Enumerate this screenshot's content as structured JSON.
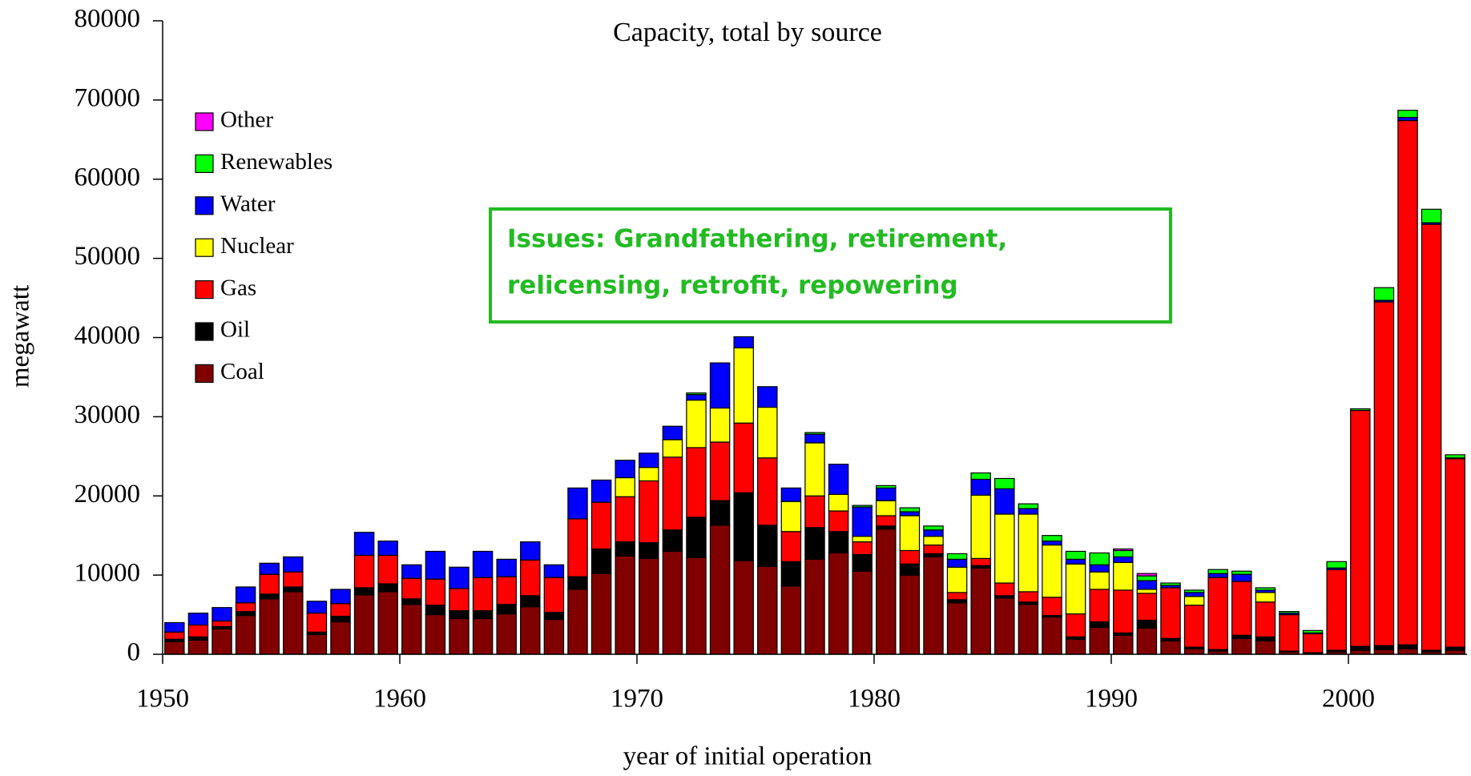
{
  "chart_data": {
    "type": "stacked_bar",
    "title": "Capacity, total by source",
    "x_label": "year of initial operation",
    "y_label": "megawatt",
    "annotation": [
      "Issues: Grandfathering, retirement,",
      "relicensing, retrofit, repowering"
    ],
    "legend": "upper left",
    "x": [
      1950,
      1951,
      1952,
      1953,
      1954,
      1955,
      1956,
      1957,
      1958,
      1959,
      1960,
      1961,
      1962,
      1963,
      1964,
      1965,
      1966,
      1967,
      1968,
      1969,
      1970,
      1971,
      1972,
      1973,
      1974,
      1975,
      1976,
      1977,
      1978,
      1979,
      1980,
      1981,
      1982,
      1983,
      1984,
      1985,
      1986,
      1987,
      1988,
      1989,
      1990,
      1991,
      1992,
      1993,
      1994,
      1995,
      1996,
      1997,
      1998,
      1999,
      2000,
      2001,
      2002,
      2003,
      2004
    ],
    "xlim": [
      1950,
      2005
    ],
    "xticks": [
      1950,
      1960,
      1970,
      1980,
      1990,
      2000
    ],
    "ylim": [
      0,
      80000
    ],
    "yticks": [
      0,
      10000,
      20000,
      30000,
      40000,
      50000,
      60000,
      70000,
      80000
    ],
    "series": [
      {
        "name": "Coal",
        "color": "#800000",
        "values": [
          1600,
          1800,
          3200,
          4900,
          7000,
          7900,
          2500,
          4100,
          7500,
          7900,
          6300,
          5000,
          4500,
          4500,
          5100,
          6000,
          4400,
          8200,
          10200,
          12400,
          12100,
          13000,
          12200,
          16300,
          11800,
          11100,
          8600,
          12000,
          12800,
          10500,
          15800,
          10000,
          12300,
          6500,
          10900,
          7100,
          6300,
          4700,
          1900,
          3400,
          2400,
          3300,
          1700,
          700,
          400,
          2000,
          1700,
          300,
          100,
          300,
          500,
          600,
          700,
          300,
          500
        ]
      },
      {
        "name": "Oil",
        "color": "#000000",
        "values": [
          300,
          400,
          300,
          500,
          600,
          600,
          300,
          700,
          900,
          1000,
          700,
          1200,
          1000,
          1000,
          1200,
          1400,
          900,
          1600,
          3100,
          1800,
          2000,
          2700,
          5100,
          3100,
          8600,
          5200,
          3100,
          4000,
          2700,
          2100,
          400,
          1400,
          400,
          400,
          300,
          300,
          300,
          200,
          300,
          700,
          300,
          1000,
          300,
          200,
          200,
          400,
          500,
          100,
          100,
          200,
          500,
          500,
          500,
          200,
          400
        ]
      },
      {
        "name": "Gas",
        "color": "#ff0000",
        "values": [
          900,
          1500,
          700,
          1100,
          2500,
          1900,
          2400,
          1600,
          4100,
          3600,
          2600,
          3300,
          2800,
          4200,
          3500,
          4500,
          4400,
          7300,
          5900,
          5700,
          7800,
          9200,
          8800,
          7400,
          8800,
          8500,
          3800,
          4000,
          2600,
          1600,
          1300,
          1700,
          1100,
          900,
          900,
          1600,
          1300,
          2300,
          2900,
          4100,
          5400,
          3400,
          6400,
          5300,
          9100,
          6800,
          4400,
          4600,
          2400,
          10200,
          29800,
          43400,
          66200,
          53800,
          23800
        ]
      },
      {
        "name": "Nuclear",
        "color": "#ffff00",
        "values": [
          0,
          0,
          0,
          0,
          0,
          0,
          0,
          0,
          0,
          0,
          0,
          0,
          0,
          0,
          0,
          0,
          0,
          0,
          0,
          2400,
          1700,
          2200,
          6000,
          4300,
          9500,
          6400,
          3800,
          6700,
          2100,
          700,
          1900,
          4400,
          1100,
          3200,
          8000,
          8700,
          9800,
          6600,
          6300,
          2200,
          3500,
          500,
          0,
          1100,
          0,
          0,
          1200,
          0,
          0,
          0,
          0,
          0,
          0,
          0,
          0
        ]
      },
      {
        "name": "Water",
        "color": "#0000ff",
        "values": [
          1200,
          1500,
          1700,
          2000,
          1400,
          1900,
          1500,
          1800,
          2900,
          1800,
          1700,
          3500,
          2700,
          3300,
          2200,
          2300,
          1600,
          3900,
          2800,
          2200,
          1800,
          1700,
          700,
          5700,
          1400,
          2600,
          1700,
          1100,
          3800,
          3700,
          1600,
          500,
          800,
          1000,
          2000,
          3200,
          700,
          500,
          600,
          900,
          700,
          1100,
          300,
          500,
          500,
          900,
          300,
          200,
          100,
          200,
          0,
          200,
          400,
          200,
          100
        ]
      },
      {
        "name": "Renewables",
        "color": "#00ff00",
        "values": [
          0,
          0,
          0,
          0,
          0,
          0,
          0,
          0,
          0,
          0,
          0,
          0,
          0,
          0,
          0,
          0,
          0,
          0,
          0,
          0,
          0,
          0,
          200,
          0,
          0,
          0,
          0,
          200,
          0,
          200,
          300,
          500,
          500,
          700,
          800,
          1300,
          600,
          700,
          1000,
          1500,
          800,
          600,
          300,
          300,
          500,
          400,
          300,
          200,
          300,
          800,
          200,
          1600,
          900,
          1700,
          400
        ]
      },
      {
        "name": "Other",
        "color": "#ff00ff",
        "values": [
          0,
          0,
          0,
          0,
          0,
          0,
          0,
          0,
          0,
          0,
          0,
          0,
          0,
          0,
          0,
          0,
          0,
          0,
          0,
          0,
          0,
          0,
          0,
          0,
          0,
          0,
          0,
          0,
          0,
          0,
          0,
          0,
          0,
          0,
          0,
          0,
          0,
          0,
          0,
          0,
          200,
          300,
          0,
          0,
          0,
          0,
          0,
          0,
          0,
          0,
          0,
          0,
          0,
          0,
          0
        ]
      }
    ]
  }
}
